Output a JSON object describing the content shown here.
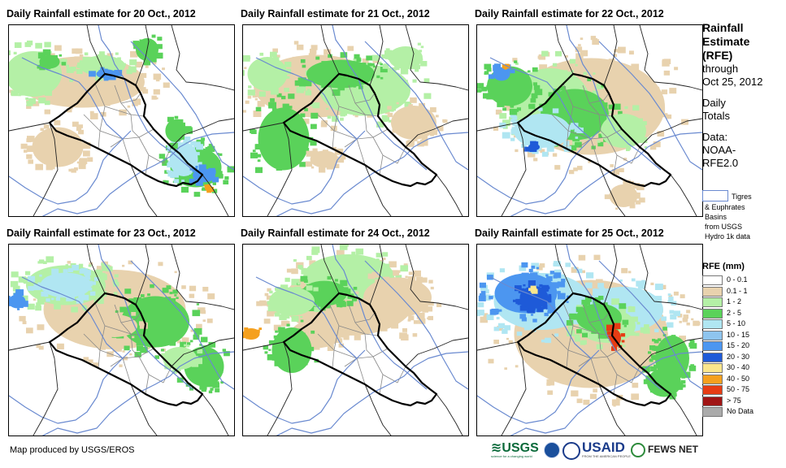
{
  "panels": [
    {
      "title": "Daily Rainfall estimate for 20 Oct., 2012"
    },
    {
      "title": "Daily Rainfall estimate for 21 Oct., 2012"
    },
    {
      "title": "Daily Rainfall estimate for 22 Oct., 2012"
    },
    {
      "title": "Daily Rainfall estimate for 23 Oct., 2012"
    },
    {
      "title": "Daily Rainfall estimate for 24 Oct., 2012"
    },
    {
      "title": "Daily Rainfall estimate for 25 Oct., 2012"
    }
  ],
  "sidebar": {
    "heading": [
      "Rainfall",
      "Estimate",
      "(RFE)"
    ],
    "through": "through",
    "date": "Oct 25, 2012",
    "daily1": "Daily",
    "daily2": "Totals",
    "data1": "Data:",
    "data2": "NOAA-",
    "data3": "RFE2.0"
  },
  "basin_legend": {
    "line1": "Tigres",
    "line2": "& Euphrates",
    "line3": "Basins",
    "line4": "from USGS",
    "line5": "Hydro 1k data",
    "color": "#6a8ad0"
  },
  "legend": {
    "title": "RFE (mm)",
    "items": [
      {
        "label": "0 - 0.1",
        "color": "#ffffff"
      },
      {
        "label": "0.1 - 1",
        "color": "#e8d2ae"
      },
      {
        "label": "1 - 2",
        "color": "#b4f0a6"
      },
      {
        "label": "2 - 5",
        "color": "#5ad25a"
      },
      {
        "label": "5 - 10",
        "color": "#b0e6f2"
      },
      {
        "label": "10 - 15",
        "color": "#8ec4ee"
      },
      {
        "label": "15 - 20",
        "color": "#4c96f0"
      },
      {
        "label": "20 - 30",
        "color": "#1e5ad8"
      },
      {
        "label": "30 - 40",
        "color": "#fae68c"
      },
      {
        "label": "40 - 50",
        "color": "#f5a01e"
      },
      {
        "label": "50 - 75",
        "color": "#e63c14"
      },
      {
        "label": "> 75",
        "color": "#a01414"
      },
      {
        "label": "No Data",
        "color": "#aaaaaa"
      }
    ]
  },
  "footer": {
    "credit": "Map produced by USGS/EROS"
  },
  "logos": {
    "usgs": "USGS",
    "usgs_tag": "science for a changing world",
    "usaid": "USAID",
    "usaid_tag": "FROM THE AMERICAN PEOPLE",
    "fews": "FEWS NET"
  }
}
